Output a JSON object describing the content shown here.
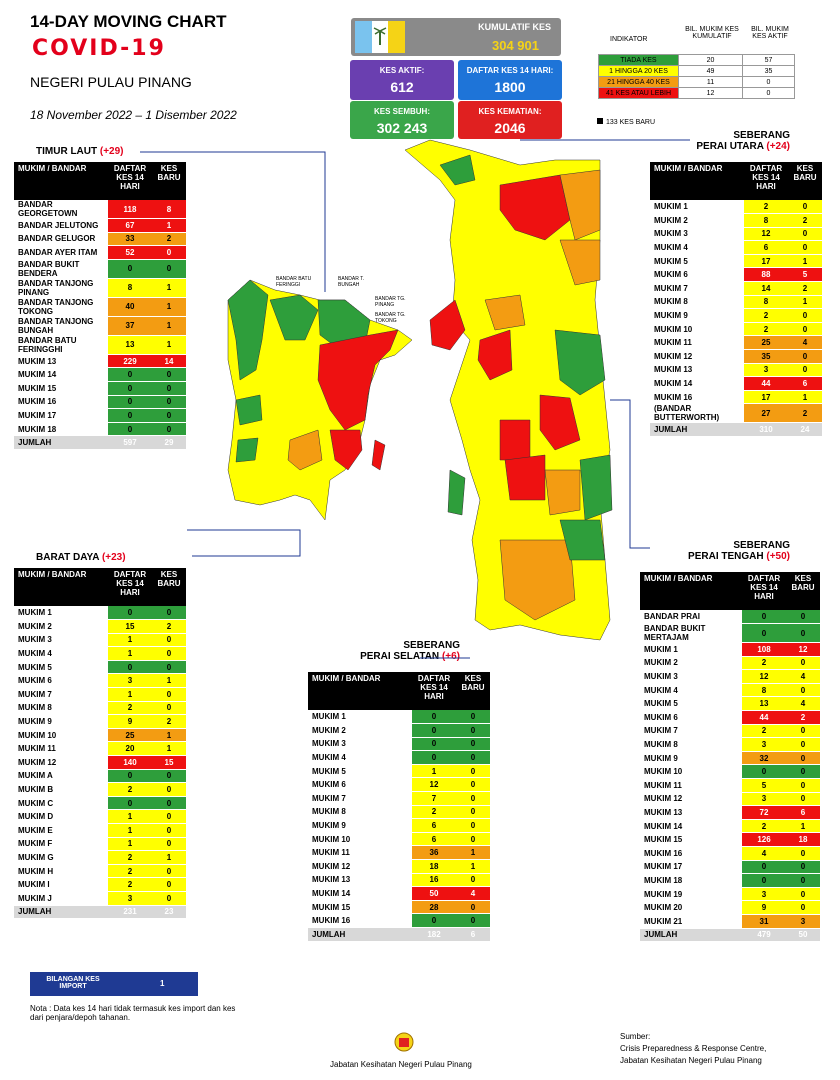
{
  "header": {
    "title_line1": "14-DAY MOVING CHART",
    "title_line2": "COVID-19",
    "state": "NEGERI PULAU PINANG",
    "date_range": "18 November 2022 – 1 Disember 2022"
  },
  "stats": {
    "kumulatif_label": "KUMULATIF KES",
    "kumulatif_value": "304 901",
    "aktif_label": "KES AKTIF:",
    "aktif_value": "612",
    "daftar_label": "DAFTAR KES 14 HARI:",
    "daftar_value": "1800",
    "sembuh_label": "KES SEMBUH:",
    "sembuh_value": "302 243",
    "kematian_label": "KES KEMATIAN:",
    "kematian_value": "2046"
  },
  "indicator": {
    "head_indikator": "INDIKATOR",
    "head_kumulatif": "BIL. MUKIM KES KUMULATIF",
    "head_aktif": "BIL. MUKIM KES AKTIF",
    "rows": [
      {
        "label": "TIADA KES",
        "kumulatif": "20",
        "aktif": "57",
        "color": "#2e9e3b"
      },
      {
        "label": "1 HINGGA 20 KES",
        "kumulatif": "49",
        "aktif": "35",
        "color": "#ffff00"
      },
      {
        "label": "21 HINGGA 40 KES",
        "kumulatif": "11",
        "aktif": "0",
        "color": "#f39c12"
      },
      {
        "label": "41 KES ATAU LEBIH",
        "kumulatif": "12",
        "aktif": "0",
        "color": "#ee1111"
      }
    ],
    "new_cases_legend": "133 KES BARU"
  },
  "table_headers": {
    "col1": "MUKIM / BANDAR",
    "col2": "DAFTAR KES 14 HARI",
    "col3": "KES BARU",
    "col2_alt": "DAFTAR KES 14 HARI"
  },
  "regions": {
    "timur_laut": {
      "name": "TIMUR LAUT",
      "delta": "(+29)",
      "rows": [
        {
          "name": "BANDAR GEORGETOWN",
          "d": "118",
          "b": "8",
          "dc": "r",
          "bc": "r"
        },
        {
          "name": "BANDAR JELUTONG",
          "d": "67",
          "b": "1",
          "dc": "r",
          "bc": "r"
        },
        {
          "name": "BANDAR GELUGOR",
          "d": "33",
          "b": "2",
          "dc": "o",
          "bc": "o"
        },
        {
          "name": "BANDAR AYER ITAM",
          "d": "52",
          "b": "0",
          "dc": "r",
          "bc": "r"
        },
        {
          "name": "BANDAR BUKIT BENDERA",
          "d": "0",
          "b": "0",
          "dc": "g",
          "bc": "g"
        },
        {
          "name": "BANDAR TANJONG PINANG",
          "d": "8",
          "b": "1",
          "dc": "y",
          "bc": "y"
        },
        {
          "name": "BANDAR TANJONG TOKONG",
          "d": "40",
          "b": "1",
          "dc": "o",
          "bc": "o"
        },
        {
          "name": "BANDAR TANJONG BUNGAH",
          "d": "37",
          "b": "1",
          "dc": "o",
          "bc": "o"
        },
        {
          "name": "BANDAR BATU FERINGGHI",
          "d": "13",
          "b": "1",
          "dc": "y",
          "bc": "y"
        },
        {
          "name": "MUKIM 13",
          "d": "229",
          "b": "14",
          "dc": "r",
          "bc": "r"
        },
        {
          "name": "MUKIM 14",
          "d": "0",
          "b": "0",
          "dc": "g",
          "bc": "g"
        },
        {
          "name": "MUKIM 15",
          "d": "0",
          "b": "0",
          "dc": "g",
          "bc": "g"
        },
        {
          "name": "MUKIM 16",
          "d": "0",
          "b": "0",
          "dc": "g",
          "bc": "g"
        },
        {
          "name": "MUKIM 17",
          "d": "0",
          "b": "0",
          "dc": "g",
          "bc": "g"
        },
        {
          "name": "MUKIM 18",
          "d": "0",
          "b": "0",
          "dc": "g",
          "bc": "g"
        }
      ],
      "total_label": "JUMLAH",
      "total_d": "597",
      "total_b": "29"
    },
    "barat_daya": {
      "name": "BARAT DAYA",
      "delta": "(+23)",
      "rows": [
        {
          "name": "MUKIM 1",
          "d": "0",
          "b": "0",
          "dc": "g",
          "bc": "g"
        },
        {
          "name": "MUKIM 2",
          "d": "15",
          "b": "2",
          "dc": "y",
          "bc": "y"
        },
        {
          "name": "MUKIM 3",
          "d": "1",
          "b": "0",
          "dc": "y",
          "bc": "y"
        },
        {
          "name": "MUKIM 4",
          "d": "1",
          "b": "0",
          "dc": "y",
          "bc": "y"
        },
        {
          "name": "MUKIM 5",
          "d": "0",
          "b": "0",
          "dc": "g",
          "bc": "g"
        },
        {
          "name": "MUKIM 6",
          "d": "3",
          "b": "1",
          "dc": "y",
          "bc": "y"
        },
        {
          "name": "MUKIM 7",
          "d": "1",
          "b": "0",
          "dc": "y",
          "bc": "y"
        },
        {
          "name": "MUKIM 8",
          "d": "2",
          "b": "0",
          "dc": "y",
          "bc": "y"
        },
        {
          "name": "MUKIM 9",
          "d": "9",
          "b": "2",
          "dc": "y",
          "bc": "y"
        },
        {
          "name": "MUKIM 10",
          "d": "25",
          "b": "1",
          "dc": "o",
          "bc": "o"
        },
        {
          "name": "MUKIM 11",
          "d": "20",
          "b": "1",
          "dc": "y",
          "bc": "y"
        },
        {
          "name": "MUKIM 12",
          "d": "140",
          "b": "15",
          "dc": "r",
          "bc": "r"
        },
        {
          "name": "MUKIM A",
          "d": "0",
          "b": "0",
          "dc": "g",
          "bc": "g"
        },
        {
          "name": "MUKIM B",
          "d": "2",
          "b": "0",
          "dc": "y",
          "bc": "y"
        },
        {
          "name": "MUKIM C",
          "d": "0",
          "b": "0",
          "dc": "g",
          "bc": "g"
        },
        {
          "name": "MUKIM D",
          "d": "1",
          "b": "0",
          "dc": "y",
          "bc": "y"
        },
        {
          "name": "MUKIM E",
          "d": "1",
          "b": "0",
          "dc": "y",
          "bc": "y"
        },
        {
          "name": "MUKIM F",
          "d": "1",
          "b": "0",
          "dc": "y",
          "bc": "y"
        },
        {
          "name": "MUKIM G",
          "d": "2",
          "b": "1",
          "dc": "y",
          "bc": "y"
        },
        {
          "name": "MUKIM H",
          "d": "2",
          "b": "0",
          "dc": "y",
          "bc": "y"
        },
        {
          "name": "MUKIM I",
          "d": "2",
          "b": "0",
          "dc": "y",
          "bc": "y"
        },
        {
          "name": "MUKIM J",
          "d": "3",
          "b": "0",
          "dc": "y",
          "bc": "y"
        }
      ],
      "total_label": "JUMLAH",
      "total_d": "231",
      "total_b": "23"
    },
    "spu": {
      "name_line1": "SEBERANG",
      "name_line2": "PERAI UTARA",
      "delta": "(+24)",
      "rows": [
        {
          "name": "MUKIM 1",
          "d": "2",
          "b": "0",
          "dc": "y",
          "bc": "y"
        },
        {
          "name": "MUKIM 2",
          "d": "8",
          "b": "2",
          "dc": "y",
          "bc": "y"
        },
        {
          "name": "MUKIM 3",
          "d": "12",
          "b": "0",
          "dc": "y",
          "bc": "y"
        },
        {
          "name": "MUKIM 4",
          "d": "6",
          "b": "0",
          "dc": "y",
          "bc": "y"
        },
        {
          "name": "MUKIM 5",
          "d": "17",
          "b": "1",
          "dc": "y",
          "bc": "y"
        },
        {
          "name": "MUKIM 6",
          "d": "88",
          "b": "5",
          "dc": "r",
          "bc": "r"
        },
        {
          "name": "MUKIM 7",
          "d": "14",
          "b": "2",
          "dc": "y",
          "bc": "y"
        },
        {
          "name": "MUKIM 8",
          "d": "8",
          "b": "1",
          "dc": "y",
          "bc": "y"
        },
        {
          "name": "MUKIM 9",
          "d": "2",
          "b": "0",
          "dc": "y",
          "bc": "y"
        },
        {
          "name": "MUKIM 10",
          "d": "2",
          "b": "0",
          "dc": "y",
          "bc": "y"
        },
        {
          "name": "MUKIM 11",
          "d": "25",
          "b": "4",
          "dc": "o",
          "bc": "o"
        },
        {
          "name": "MUKIM 12",
          "d": "35",
          "b": "0",
          "dc": "o",
          "bc": "o"
        },
        {
          "name": "MUKIM 13",
          "d": "3",
          "b": "0",
          "dc": "y",
          "bc": "y"
        },
        {
          "name": "MUKIM 14",
          "d": "44",
          "b": "6",
          "dc": "r",
          "bc": "r"
        },
        {
          "name": "MUKIM 16",
          "d": "17",
          "b": "1",
          "dc": "y",
          "bc": "y"
        },
        {
          "name": "(BANDAR BUTTERWORTH)",
          "d": "27",
          "b": "2",
          "dc": "o",
          "bc": "o"
        }
      ],
      "total_label": "JUMLAH",
      "total_d": "310",
      "total_b": "24"
    },
    "spt": {
      "name_line1": "SEBERANG",
      "name_line2": "PERAI TENGAH",
      "delta": "(+50)",
      "rows": [
        {
          "name": "BANDAR PRAI",
          "d": "0",
          "b": "0",
          "dc": "g",
          "bc": "g"
        },
        {
          "name": "BANDAR BUKIT MERTAJAM",
          "d": "0",
          "b": "0",
          "dc": "g",
          "bc": "g"
        },
        {
          "name": "MUKIM 1",
          "d": "108",
          "b": "12",
          "dc": "r",
          "bc": "r"
        },
        {
          "name": "MUKIM 2",
          "d": "2",
          "b": "0",
          "dc": "y",
          "bc": "y"
        },
        {
          "name": "MUKIM 3",
          "d": "12",
          "b": "4",
          "dc": "y",
          "bc": "y"
        },
        {
          "name": "MUKIM 4",
          "d": "8",
          "b": "0",
          "dc": "y",
          "bc": "y"
        },
        {
          "name": "MUKIM 5",
          "d": "13",
          "b": "4",
          "dc": "y",
          "bc": "y"
        },
        {
          "name": "MUKIM 6",
          "d": "44",
          "b": "2",
          "dc": "r",
          "bc": "r"
        },
        {
          "name": "MUKIM 7",
          "d": "2",
          "b": "0",
          "dc": "y",
          "bc": "y"
        },
        {
          "name": "MUKIM 8",
          "d": "3",
          "b": "0",
          "dc": "y",
          "bc": "y"
        },
        {
          "name": "MUKIM 9",
          "d": "32",
          "b": "0",
          "dc": "o",
          "bc": "o"
        },
        {
          "name": "MUKIM 10",
          "d": "0",
          "b": "0",
          "dc": "g",
          "bc": "g"
        },
        {
          "name": "MUKIM 11",
          "d": "5",
          "b": "0",
          "dc": "y",
          "bc": "y"
        },
        {
          "name": "MUKIM 12",
          "d": "3",
          "b": "0",
          "dc": "y",
          "bc": "y"
        },
        {
          "name": "MUKIM 13",
          "d": "72",
          "b": "6",
          "dc": "r",
          "bc": "r"
        },
        {
          "name": "MUKIM 14",
          "d": "2",
          "b": "1",
          "dc": "y",
          "bc": "y"
        },
        {
          "name": "MUKIM 15",
          "d": "126",
          "b": "18",
          "dc": "r",
          "bc": "r"
        },
        {
          "name": "MUKIM 16",
          "d": "4",
          "b": "0",
          "dc": "y",
          "bc": "y"
        },
        {
          "name": "MUKIM 17",
          "d": "0",
          "b": "0",
          "dc": "g",
          "bc": "g"
        },
        {
          "name": "MUKIM 18",
          "d": "0",
          "b": "0",
          "dc": "g",
          "bc": "g"
        },
        {
          "name": "MUKIM 19",
          "d": "3",
          "b": "0",
          "dc": "y",
          "bc": "y"
        },
        {
          "name": "MUKIM 20",
          "d": "9",
          "b": "0",
          "dc": "y",
          "bc": "y"
        },
        {
          "name": "MUKIM 21",
          "d": "31",
          "b": "3",
          "dc": "o",
          "bc": "o"
        }
      ],
      "total_label": "JUMLAH",
      "total_d": "479",
      "total_b": "50"
    },
    "sps": {
      "name_line1": "SEBERANG",
      "name_line2": "PERAI SELATAN",
      "delta": "(+6)",
      "rows": [
        {
          "name": "MUKIM 1",
          "d": "0",
          "b": "0",
          "dc": "g",
          "bc": "g"
        },
        {
          "name": "MUKIM 2",
          "d": "0",
          "b": "0",
          "dc": "g",
          "bc": "g"
        },
        {
          "name": "MUKIM 3",
          "d": "0",
          "b": "0",
          "dc": "g",
          "bc": "g"
        },
        {
          "name": "MUKIM 4",
          "d": "0",
          "b": "0",
          "dc": "g",
          "bc": "g"
        },
        {
          "name": "MUKIM 5",
          "d": "1",
          "b": "0",
          "dc": "y",
          "bc": "y"
        },
        {
          "name": "MUKIM 6",
          "d": "12",
          "b": "0",
          "dc": "y",
          "bc": "y"
        },
        {
          "name": "MUKIM 7",
          "d": "7",
          "b": "0",
          "dc": "y",
          "bc": "y"
        },
        {
          "name": "MUKIM 8",
          "d": "2",
          "b": "0",
          "dc": "y",
          "bc": "y"
        },
        {
          "name": "MUKIM 9",
          "d": "6",
          "b": "0",
          "dc": "y",
          "bc": "y"
        },
        {
          "name": "MUKIM 10",
          "d": "6",
          "b": "0",
          "dc": "y",
          "bc": "y"
        },
        {
          "name": "MUKIM 11",
          "d": "36",
          "b": "1",
          "dc": "o",
          "bc": "o"
        },
        {
          "name": "MUKIM 12",
          "d": "18",
          "b": "1",
          "dc": "y",
          "bc": "y"
        },
        {
          "name": "MUKIM 13",
          "d": "16",
          "b": "0",
          "dc": "y",
          "bc": "y"
        },
        {
          "name": "MUKIM 14",
          "d": "50",
          "b": "4",
          "dc": "r",
          "bc": "r"
        },
        {
          "name": "MUKIM 15",
          "d": "28",
          "b": "0",
          "dc": "o",
          "bc": "o"
        },
        {
          "name": "MUKIM 16",
          "d": "0",
          "b": "0",
          "dc": "g",
          "bc": "g"
        }
      ],
      "total_label": "JUMLAH",
      "total_d": "182",
      "total_b": "6"
    }
  },
  "import": {
    "label": "BILANGAN KES IMPORT",
    "value": "1"
  },
  "note": "Nota : Data kes 14 hari tidak termasuk kes import dan kes dari penjara/depoh tahanan.",
  "footer": {
    "agency": "Jabatan Kesihatan Negeri Pulau Pinang",
    "source_label": "Sumber:",
    "source_line1": "Crisis Preparedness & Response Centre,",
    "source_line2": "Jabatan Kesihatan Negeri Pulau Pinang"
  },
  "map_labels": {
    "batu_feringgi": "BANDAR BATU FERINGGI",
    "tanjong_bungah": "BANDAR T. BUNGAH",
    "tanjong_pinang": "BANDAR TG. PINANG",
    "tanjong_tokong": "BANDAR TG. TOKONG"
  },
  "colors": {
    "green": "#2e9e3b",
    "yellow": "#ffff00",
    "orange": "#f39c12",
    "red": "#ee1111",
    "navy": "#1f3a93",
    "purple": "#6a3fb0",
    "blue": "#1e74d8",
    "stat_green": "#3aa64a",
    "stat_red": "#e02020"
  }
}
